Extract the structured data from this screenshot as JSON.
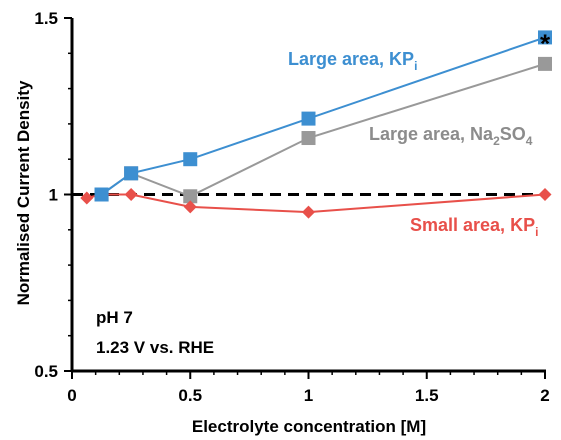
{
  "chart_data": {
    "type": "line",
    "xlabel": "Electrolyte concentration [M]",
    "ylabel": "Normalised Current Density",
    "xlim": [
      0,
      2
    ],
    "ylim": [
      0.5,
      1.5
    ],
    "x_ticks": [
      "0",
      "0.5",
      "1",
      "1.5",
      "2"
    ],
    "y_ticks": [
      "0.5",
      "1",
      "1.5"
    ],
    "reference_line": {
      "y": 1,
      "style": "dashed"
    },
    "series": [
      {
        "label_base": "Large area, KP",
        "label_sub": "i",
        "color": "#3d8fd1",
        "marker": "square",
        "x": [
          0.125,
          0.25,
          0.5,
          1,
          2
        ],
        "y": [
          1.0,
          1.06,
          1.1,
          1.215,
          1.445
        ]
      },
      {
        "label_base": "Large area, Na",
        "label_sub": "2",
        "label_mid": "SO",
        "label_sub2": "4",
        "color": "#999999",
        "marker": "square",
        "x": [
          0.125,
          0.25,
          0.5,
          1,
          2
        ],
        "y": [
          1.0,
          1.06,
          0.995,
          1.16,
          1.37
        ]
      },
      {
        "label_base": "Small area, KP",
        "label_sub": "i",
        "color": "#e8504a",
        "marker": "diamond",
        "x": [
          0.0625,
          0.125,
          0.25,
          0.5,
          1,
          2
        ],
        "y": [
          0.99,
          1.0,
          1.0,
          0.965,
          0.95,
          1.0
        ]
      }
    ],
    "annotations": [
      {
        "text": "*",
        "x": 2,
        "y": 1.445
      }
    ],
    "conditions": [
      "pH 7",
      "1.23 V vs. RHE"
    ]
  }
}
